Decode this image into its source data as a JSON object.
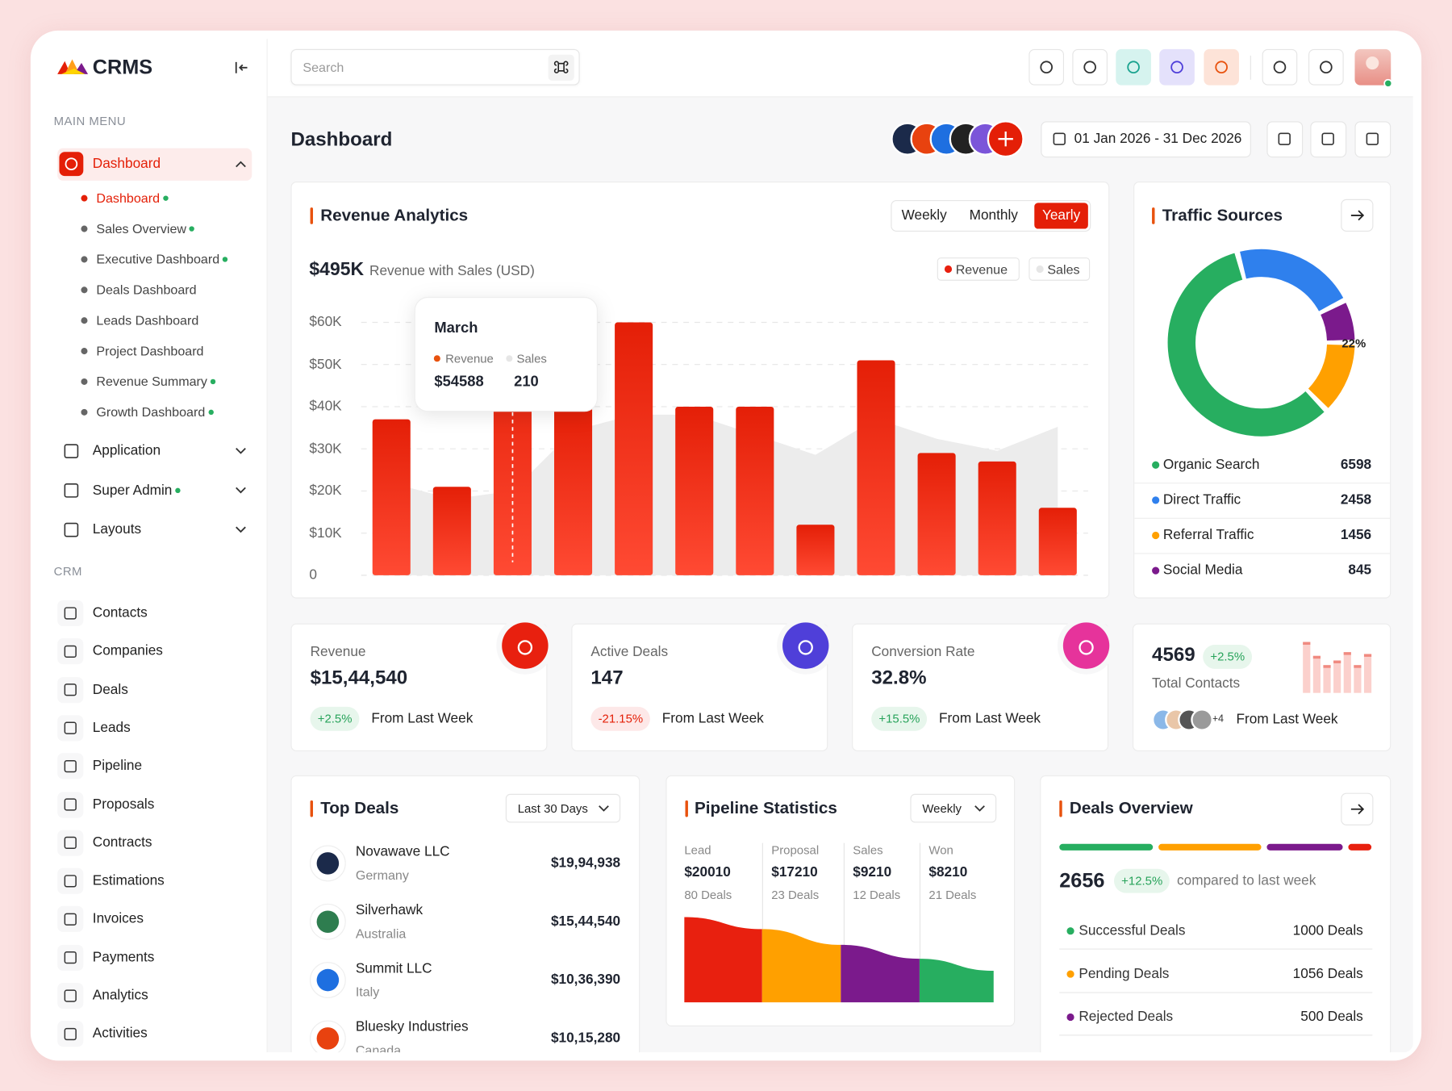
{
  "brand": "CRMS",
  "search": {
    "placeholder": "Search"
  },
  "sidebar": {
    "main_menu_title": "MAIN MENU",
    "dashboard": {
      "label": "Dashboard",
      "children": [
        {
          "label": "Dashboard",
          "dot": true,
          "active": true
        },
        {
          "label": "Sales Overview",
          "dot": true
        },
        {
          "label": "Executive Dashboard",
          "dot": true
        },
        {
          "label": "Deals Dashboard"
        },
        {
          "label": "Leads Dashboard"
        },
        {
          "label": "Project Dashboard"
        },
        {
          "label": "Revenue Summary",
          "dot": true
        },
        {
          "label": "Growth Dashboard",
          "dot": true
        }
      ]
    },
    "groups": [
      {
        "label": "Application"
      },
      {
        "label": "Super Admin",
        "dot": true
      },
      {
        "label": "Layouts"
      }
    ],
    "crm_title": "CRM",
    "crm_items": [
      "Contacts",
      "Companies",
      "Deals",
      "Leads",
      "Pipeline",
      "Proposals",
      "Contracts",
      "Estimations",
      "Invoices",
      "Payments",
      "Analytics",
      "Activities"
    ]
  },
  "page_title": "Dashboard",
  "date_range": "01 Jan 2026 - 31 Dec 2026",
  "revenue_analytics": {
    "title": "Revenue Analytics",
    "tabs": [
      "Weekly",
      "Monthly",
      "Yearly"
    ],
    "active_tab": 2,
    "total": "$495K",
    "total_caption": "Revenue with Sales (USD)",
    "chart": {
      "type": "bar",
      "ylim": [
        0,
        60000
      ],
      "yticks": [
        0,
        {
          "value": 10000,
          "label": "$10K"
        },
        {
          "value": 20000,
          "label": "$20K"
        },
        {
          "value": 30000,
          "label": "$30K"
        },
        {
          "value": 40000,
          "label": "$40K"
        },
        {
          "value": 50000,
          "label": "$50K"
        },
        {
          "value": 60000,
          "label": "$60K"
        }
      ],
      "y2lim": [
        0,
        630
      ],
      "grid": true,
      "series": [
        {
          "name": "Revenue",
          "color": "#e8200f",
          "values": [
            37000,
            21000,
            54588,
            40000,
            60000,
            40000,
            40000,
            12000,
            51000,
            29000,
            27000,
            16000
          ]
        },
        {
          "name": "Sales",
          "color": "#ececec",
          "axis": "y2",
          "values": [
            230,
            190,
            210,
            360,
            400,
            400,
            350,
            300,
            390,
            340,
            310,
            370
          ]
        }
      ],
      "tooltip": {
        "title": "March",
        "revenue": "$54588",
        "sales": 210
      }
    }
  },
  "traffic_sources": {
    "title": "Traffic Sources",
    "type": "donut",
    "center_label": "22%",
    "series": [
      {
        "name": "Organic Search",
        "color": "#27ae60",
        "value": 6598
      },
      {
        "name": "Direct Traffic",
        "color": "#2f80ed",
        "value": 2458
      },
      {
        "name": "Referral Traffic",
        "color": "#ffa000",
        "value": 1456
      },
      {
        "name": "Social Media",
        "color": "#7b1a8c",
        "value": 845
      }
    ]
  },
  "stats": [
    {
      "label": "Revenue",
      "value": "$15,44,540",
      "change": "+2.5%",
      "trend": "up",
      "note": "From Last Week",
      "icon_color": "#e8200f"
    },
    {
      "label": "Active Deals",
      "value": "147",
      "change": "-21.15%",
      "trend": "down",
      "note": "From Last Week",
      "icon_color": "#4f3fd9"
    },
    {
      "label": "Conversion Rate",
      "value": "32.8%",
      "change": "+15.5%",
      "trend": "up",
      "note": "From Last Week",
      "icon_color": "#e6339b"
    }
  ],
  "contacts": {
    "value": 4569,
    "change": "+2.5%",
    "label": "Total Contacts",
    "more": "+4",
    "note": "From Last Week"
  },
  "top_deals": {
    "title": "Top Deals",
    "filter": "Last 30 Days",
    "items": [
      {
        "name": "Novawave LLC",
        "country": "Germany",
        "amount": "$19,94,938",
        "color": "#1b2a4a"
      },
      {
        "name": "Silverhawk",
        "country": "Australia",
        "amount": "$15,44,540",
        "color": "#2e7d4f"
      },
      {
        "name": "Summit LLC",
        "country": "Italy",
        "amount": "$10,36,390",
        "color": "#1e6fe0"
      },
      {
        "name": "Bluesky Industries",
        "country": "Canada",
        "amount": "$10,15,280",
        "color": "#e8420f"
      }
    ]
  },
  "pipeline": {
    "title": "Pipeline Statistics",
    "filter": "Weekly",
    "stages": [
      {
        "label": "Lead",
        "amount": "$20010",
        "deals": "80 Deals",
        "color": "#e8200f"
      },
      {
        "label": "Proposal",
        "amount": "$17210",
        "deals": "23 Deals",
        "color": "#ffa000"
      },
      {
        "label": "Sales",
        "amount": "$9210",
        "deals": "12 Deals",
        "color": "#7b1a8c"
      },
      {
        "label": "Won",
        "amount": "$8210",
        "deals": "21 Deals",
        "color": "#27ae60"
      }
    ]
  },
  "deals_overview": {
    "title": "Deals Overview",
    "total": 2656,
    "change": "+12.5%",
    "note": "compared to last week",
    "bar_colors": [
      "#27ae60",
      "#ffa000",
      "#7b1a8c",
      "#e8200f"
    ],
    "rows": [
      {
        "label": "Successful Deals",
        "value": "1000 Deals",
        "color": "#27ae60"
      },
      {
        "label": "Pending Deals",
        "value": "1056 Deals",
        "color": "#ffa000"
      },
      {
        "label": "Rejected Deals",
        "value": "500 Deals",
        "color": "#7b1a8c"
      }
    ]
  }
}
